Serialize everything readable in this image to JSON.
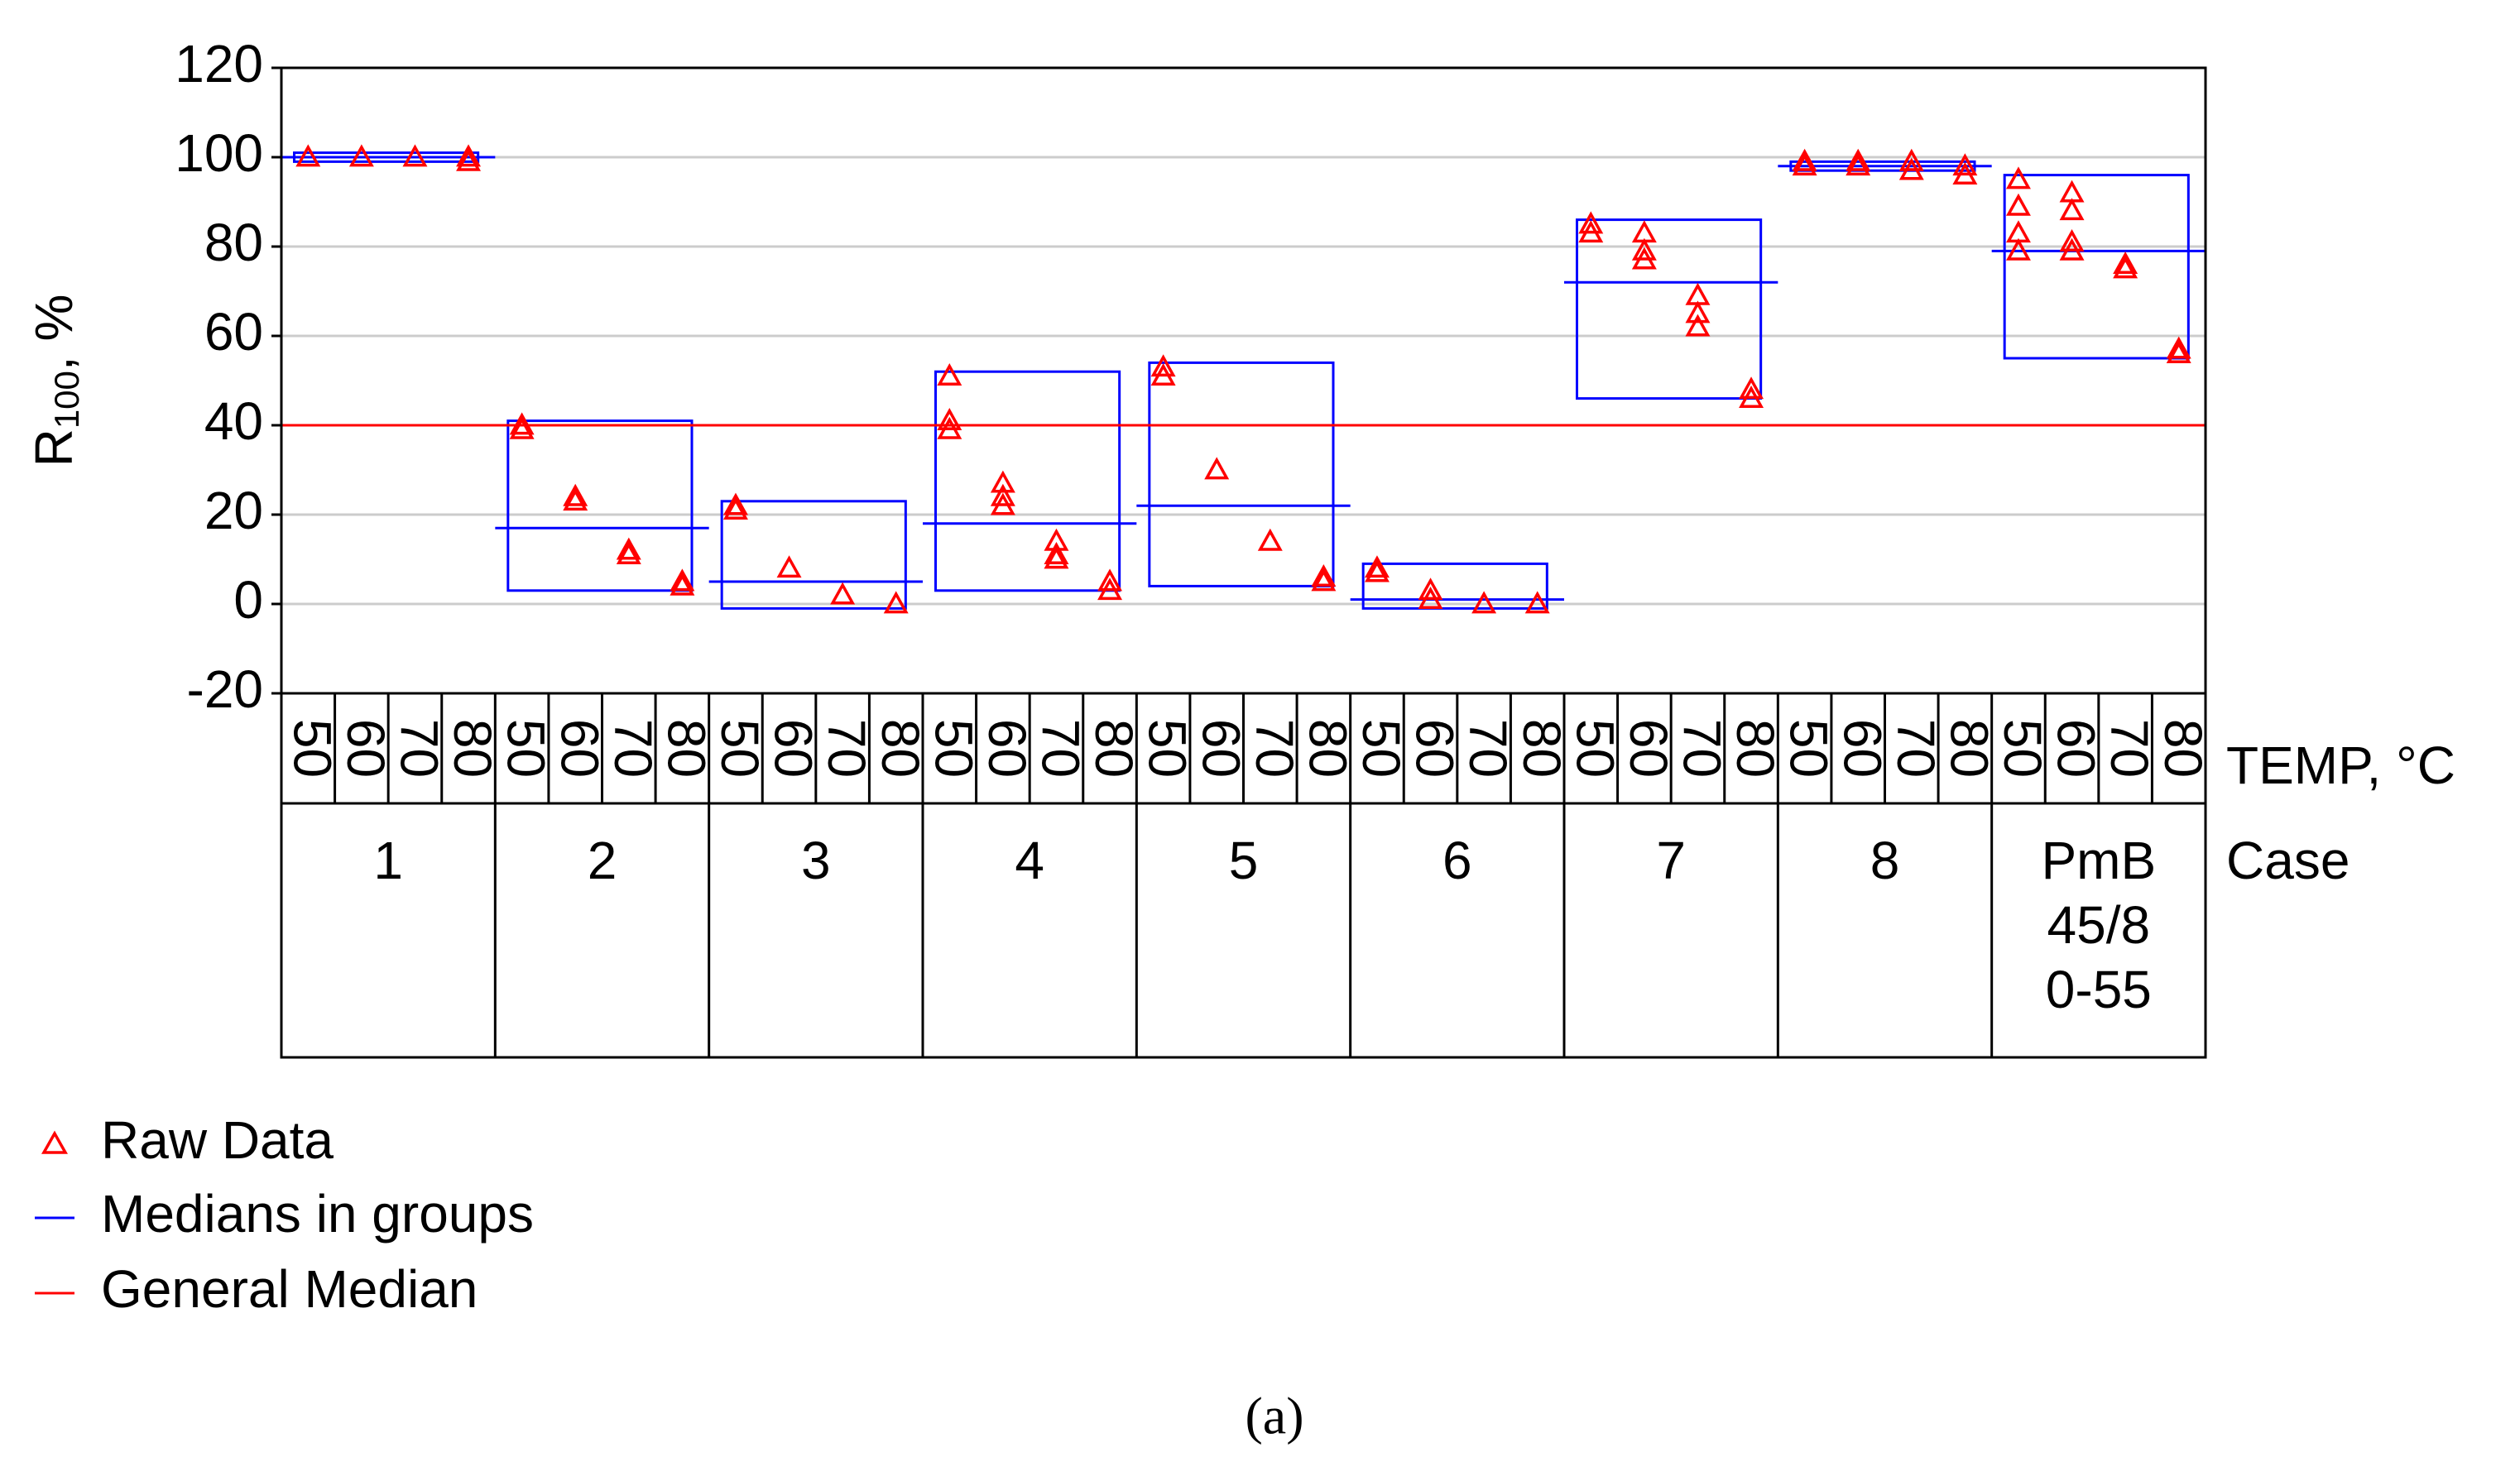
{
  "chart_data": {
    "type": "median_plot",
    "y_label": {
      "main": "R",
      "sub": "100",
      "rest": ", %"
    },
    "ylim": [
      -20,
      120
    ],
    "yticks": [
      -20,
      0,
      20,
      40,
      60,
      80,
      100,
      120
    ],
    "grid": true,
    "temps": [
      "50",
      "60",
      "70",
      "80"
    ],
    "temp_label": "TEMP, °C",
    "case_label": "Case",
    "raw_color": "#ff0000",
    "median_color": "#0000ff",
    "general_median_color": "#ff0000",
    "general_median": 40,
    "groups": [
      {
        "name_lines": [
          "1"
        ],
        "median": 100,
        "box": [
          99,
          101
        ],
        "raw": [
          [
            100
          ],
          [
            100
          ],
          [
            100
          ],
          [
            99,
            100
          ]
        ]
      },
      {
        "name_lines": [
          "2"
        ],
        "median": 17,
        "box": [
          3,
          41
        ],
        "raw": [
          [
            40,
            39
          ],
          [
            24,
            23
          ],
          [
            12,
            11
          ],
          [
            5,
            4
          ]
        ]
      },
      {
        "name_lines": [
          "3"
        ],
        "median": 5,
        "box": [
          -1,
          23
        ],
        "raw": [
          [
            22,
            21
          ],
          [
            8
          ],
          [
            2
          ],
          [
            0
          ]
        ]
      },
      {
        "name_lines": [
          "4"
        ],
        "median": 18,
        "box": [
          3,
          52
        ],
        "raw": [
          [
            51,
            41,
            39
          ],
          [
            27,
            24,
            22
          ],
          [
            14,
            11,
            10
          ],
          [
            5,
            3
          ]
        ]
      },
      {
        "name_lines": [
          "5"
        ],
        "median": 22,
        "box": [
          4,
          54
        ],
        "raw": [
          [
            53,
            51
          ],
          [
            30
          ],
          [
            14
          ],
          [
            6,
            5
          ]
        ]
      },
      {
        "name_lines": [
          "6"
        ],
        "median": 1,
        "box": [
          -1,
          9
        ],
        "raw": [
          [
            8,
            7
          ],
          [
            3,
            1
          ],
          [
            0
          ],
          [
            0
          ]
        ]
      },
      {
        "name_lines": [
          "7"
        ],
        "median": 72,
        "box": [
          46,
          86
        ],
        "raw": [
          [
            85,
            83
          ],
          [
            83,
            79,
            77
          ],
          [
            69,
            65,
            62
          ],
          [
            48,
            46
          ]
        ]
      },
      {
        "name_lines": [
          "8"
        ],
        "median": 98,
        "box": [
          97,
          99
        ],
        "raw": [
          [
            99,
            98
          ],
          [
            99,
            98
          ],
          [
            99,
            97
          ],
          [
            98,
            96
          ]
        ]
      },
      {
        "name_lines": [
          "PmB",
          "45/8",
          "0-55"
        ],
        "median": 79,
        "box": [
          55,
          96
        ],
        "raw": [
          [
            95,
            89,
            83,
            79
          ],
          [
            92,
            88,
            81,
            79
          ],
          [
            76,
            75
          ],
          [
            57,
            56
          ]
        ]
      }
    ],
    "legend": [
      "Raw Data",
      "Medians in groups",
      "General Median"
    ],
    "caption": "(a)"
  }
}
